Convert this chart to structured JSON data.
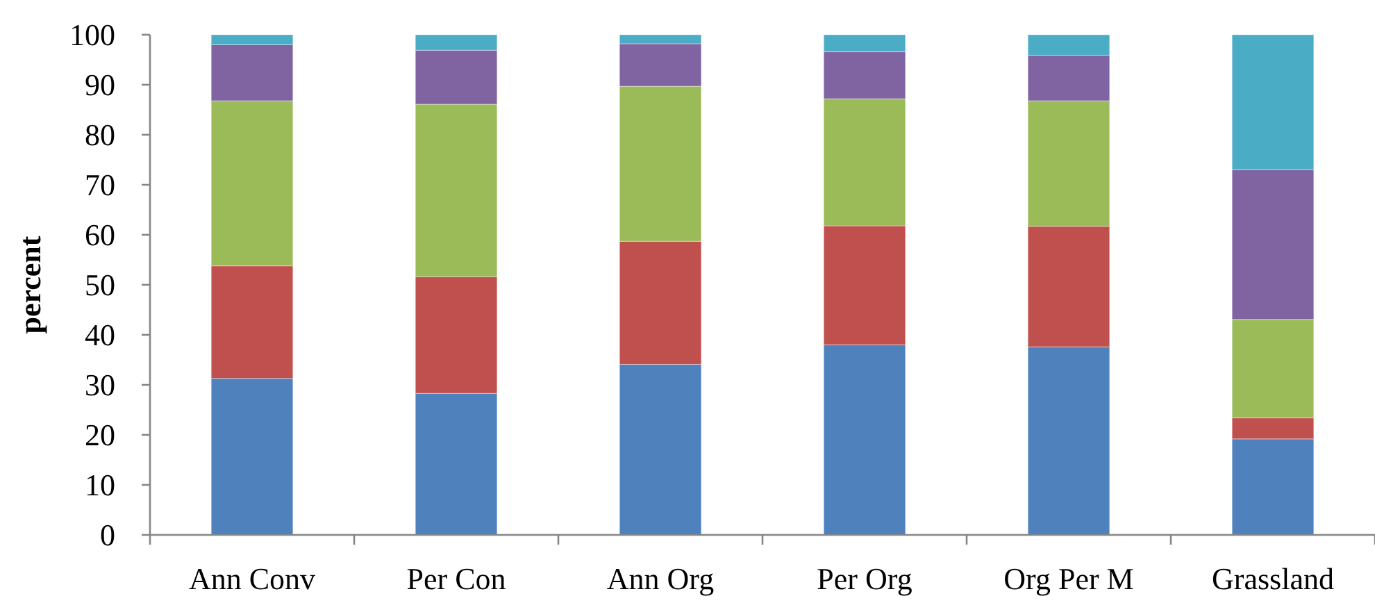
{
  "chart_data": {
    "type": "bar",
    "ylabel": "percent",
    "stacked": true,
    "categories": [
      "Ann Conv",
      "Per Con",
      "Ann Org",
      "Per Org",
      "Org Per M",
      "Grassland"
    ],
    "series": [
      {
        "color": "#4f81bd",
        "values": [
          31.3,
          28.3,
          34.1,
          38.0,
          37.6,
          19.2
        ]
      },
      {
        "color": "#c0504d",
        "values": [
          22.5,
          23.3,
          24.6,
          23.8,
          24.1,
          4.2
        ]
      },
      {
        "color": "#9bbb59",
        "values": [
          33.0,
          34.5,
          31.0,
          25.4,
          25.1,
          19.7
        ]
      },
      {
        "color": "#8064a2",
        "values": [
          11.2,
          10.8,
          8.5,
          9.4,
          9.1,
          29.9
        ]
      },
      {
        "color": "#4bacc6",
        "values": [
          2.0,
          3.1,
          1.8,
          3.4,
          4.1,
          27.0
        ]
      }
    ],
    "ylim": [
      0,
      100
    ],
    "yticks": [
      0,
      10,
      20,
      30,
      40,
      50,
      60,
      70,
      80,
      90,
      100
    ]
  }
}
